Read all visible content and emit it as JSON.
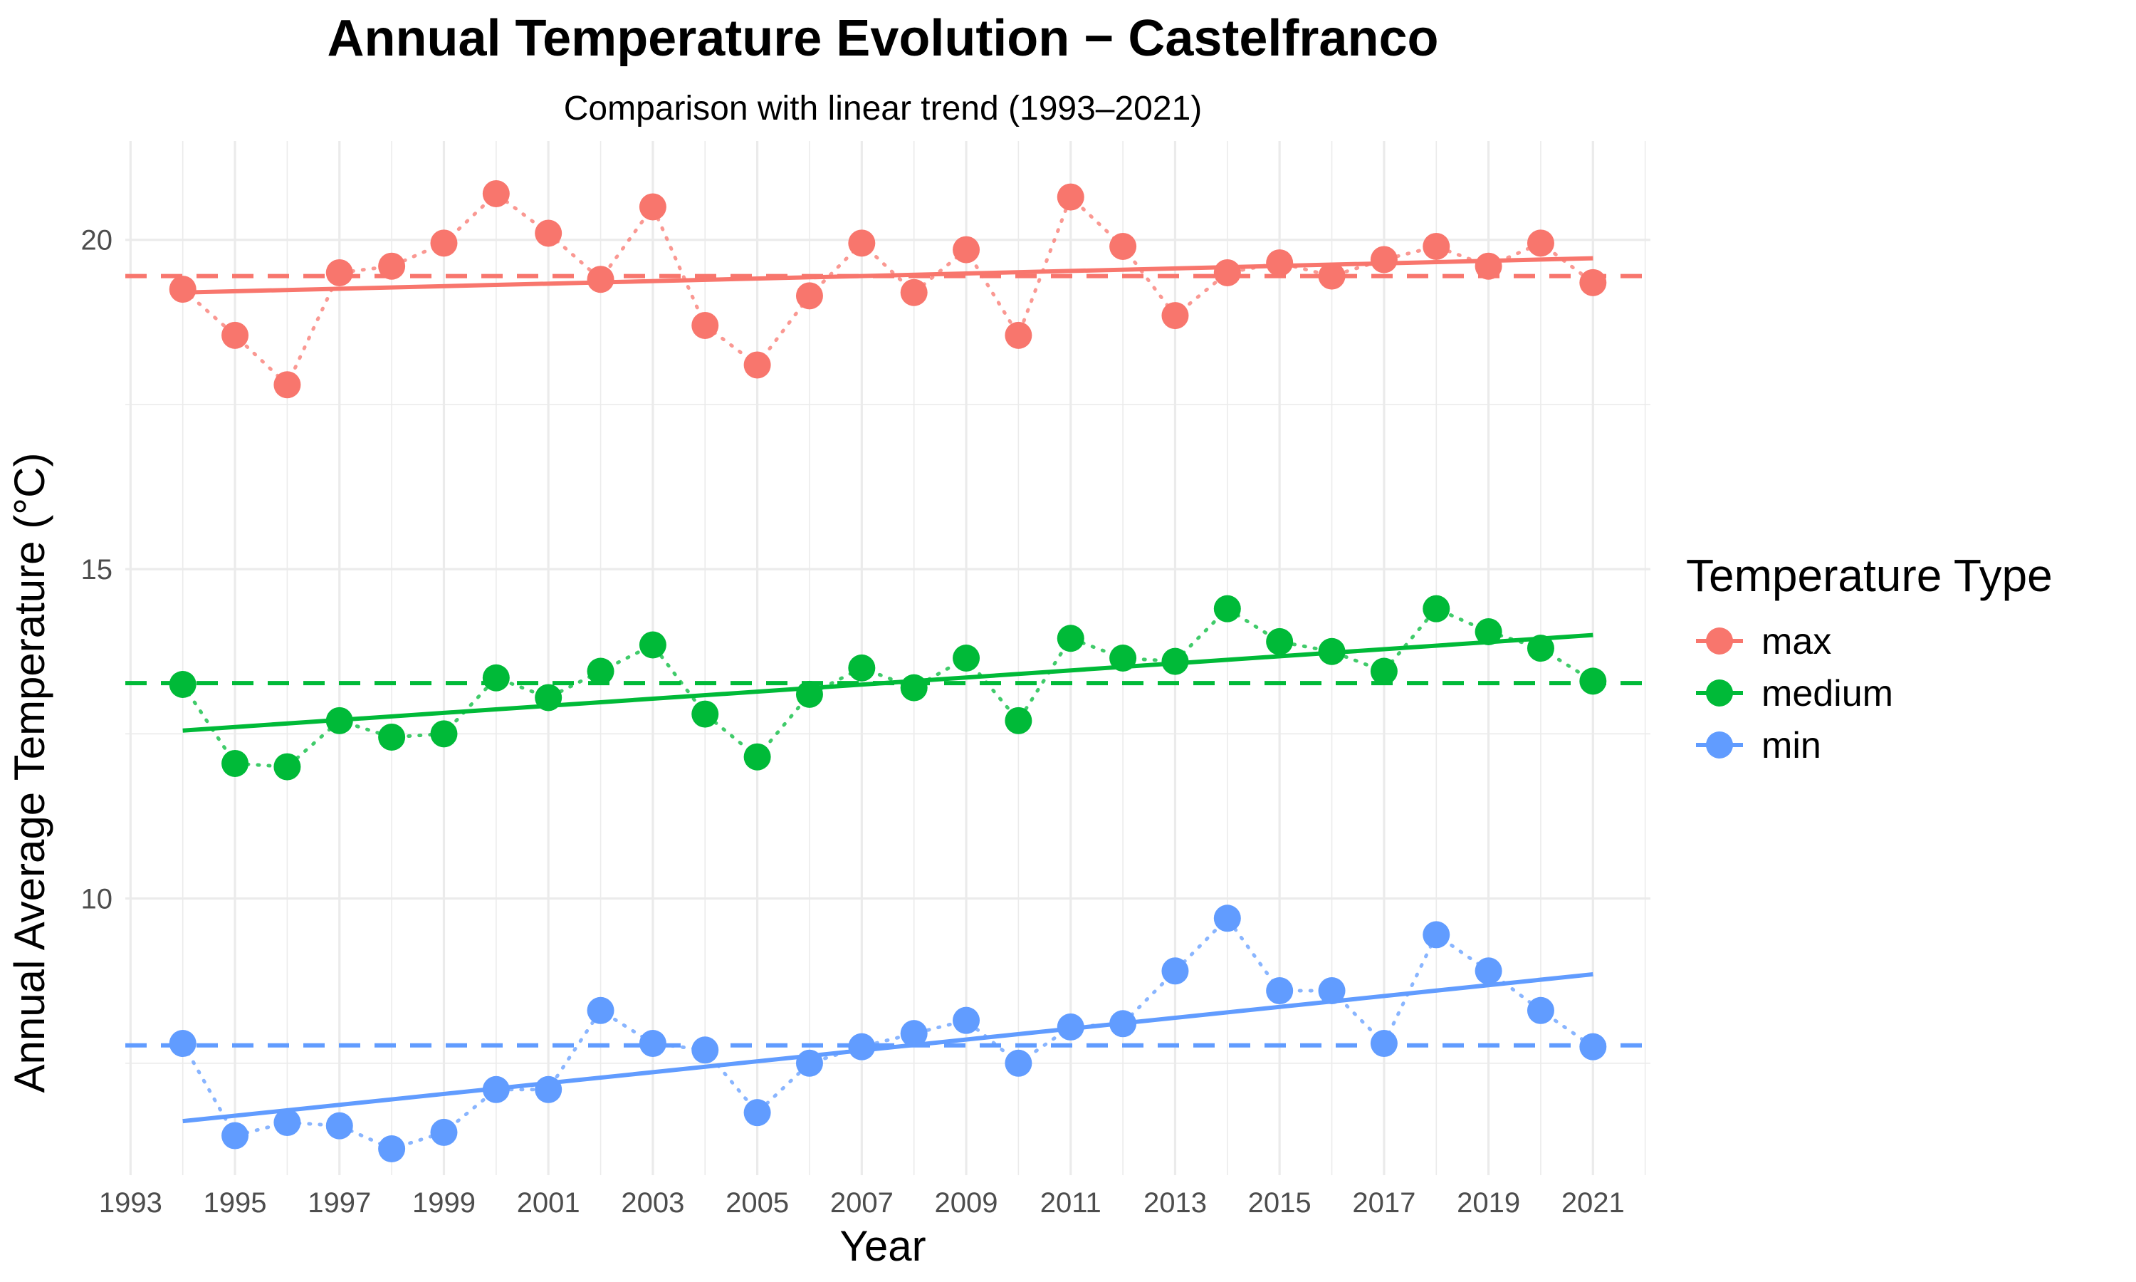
{
  "chart_data": {
    "type": "line",
    "title": "Annual Temperature Evolution − Castelfranco",
    "subtitle": "Comparison with linear trend (1993–2021)",
    "xlabel": "Year",
    "ylabel": "Annual Average Temperature (°C)",
    "x_ticks": [
      "1993",
      "1995",
      "1997",
      "1999",
      "2001",
      "2003",
      "2005",
      "2007",
      "2009",
      "2011",
      "2013",
      "2015",
      "2017",
      "2019",
      "2021"
    ],
    "y_ticks": [
      "10",
      "15",
      "20"
    ],
    "xlim": [
      1992.9,
      2022.1
    ],
    "ylim": [
      5.8,
      21.5
    ],
    "grid": true,
    "legend": {
      "title": "Temperature Type",
      "position": "right"
    },
    "x": [
      1994,
      1995,
      1996,
      1997,
      1998,
      1999,
      2000,
      2001,
      2002,
      2003,
      2004,
      2005,
      2006,
      2007,
      2008,
      2009,
      2010,
      2011,
      2012,
      2013,
      2014,
      2015,
      2016,
      2017,
      2018,
      2019,
      2020,
      2021
    ],
    "series": [
      {
        "name": "max",
        "color": "#F8766D",
        "values": [
          19.25,
          18.55,
          17.8,
          19.5,
          19.6,
          19.95,
          20.7,
          20.1,
          19.4,
          20.5,
          18.7,
          18.1,
          19.15,
          19.95,
          19.2,
          19.85,
          18.55,
          20.65,
          19.9,
          18.85,
          19.5,
          19.65,
          19.45,
          19.7,
          19.9,
          19.6,
          19.95,
          19.35
        ],
        "mean": 19.45,
        "trend": [
          19.2,
          19.72
        ]
      },
      {
        "name": "medium",
        "color": "#00BA38",
        "values": [
          13.25,
          12.05,
          12.0,
          12.7,
          12.45,
          12.5,
          13.35,
          13.05,
          13.45,
          13.85,
          12.8,
          12.15,
          13.1,
          13.5,
          13.2,
          13.65,
          12.7,
          13.95,
          13.65,
          13.6,
          14.4,
          13.9,
          13.75,
          13.45,
          14.4,
          14.05,
          13.8,
          13.3
        ],
        "mean": 13.27,
        "trend": [
          12.55,
          14.0
        ]
      },
      {
        "name": "min",
        "color": "#619CFF",
        "values": [
          7.8,
          6.4,
          6.6,
          6.55,
          6.2,
          6.45,
          7.1,
          7.1,
          8.3,
          7.8,
          7.7,
          6.75,
          7.5,
          7.75,
          7.95,
          8.15,
          7.5,
          8.05,
          8.1,
          8.9,
          9.7,
          8.6,
          8.6,
          7.8,
          9.45,
          8.9,
          8.3,
          7.75
        ],
        "mean": 7.77,
        "trend": [
          6.62,
          8.85
        ]
      }
    ]
  }
}
